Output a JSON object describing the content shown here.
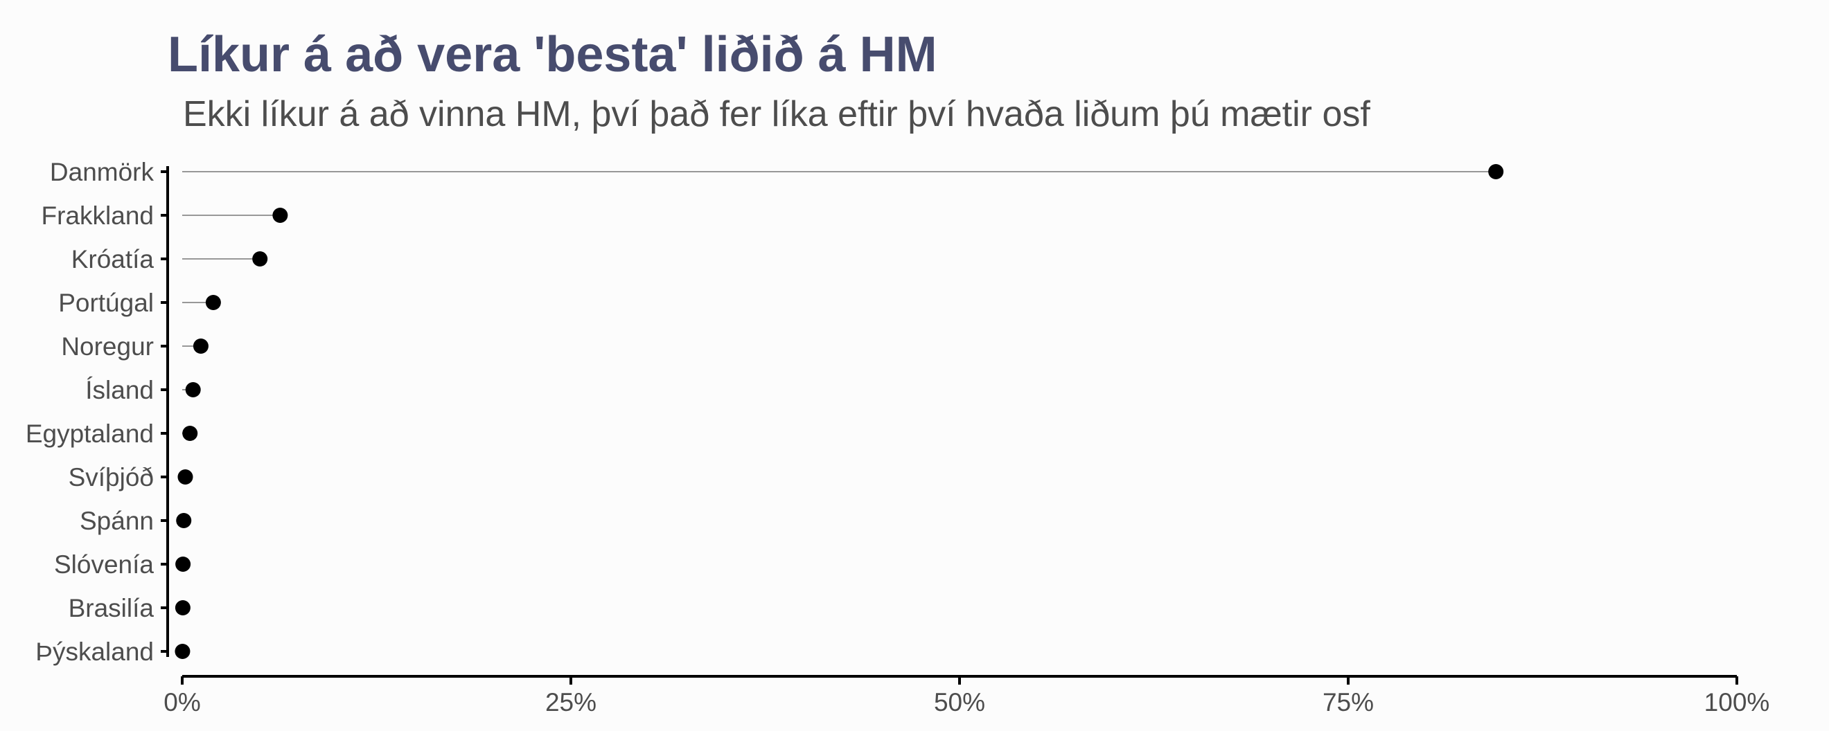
{
  "chart_data": {
    "type": "lollipop",
    "title": "Líkur á að vera 'besta' liðið á HM",
    "subtitle": "Ekki líkur á að vinna HM, því það fer líka eftir því hvaða liðum þú mætir osf",
    "xlabel": "",
    "ylabel": "",
    "xlim": [
      0,
      1
    ],
    "x_ticks": [
      0,
      0.25,
      0.5,
      0.75,
      1
    ],
    "x_tick_labels": [
      "0%",
      "25%",
      "50%",
      "75%",
      "100%"
    ],
    "grid": false,
    "categories": [
      "Danmörk",
      "Frakkland",
      "Króatía",
      "Portúgal",
      "Noregur",
      "Ísland",
      "Egyptaland",
      "Svíþjóð",
      "Spánn",
      "Slóvenía",
      "Brasilía",
      "Þýskaland"
    ],
    "values": [
      0.845,
      0.063,
      0.05,
      0.02,
      0.012,
      0.007,
      0.005,
      0.002,
      0.001,
      0.0005,
      0.0004,
      0.0002
    ]
  }
}
